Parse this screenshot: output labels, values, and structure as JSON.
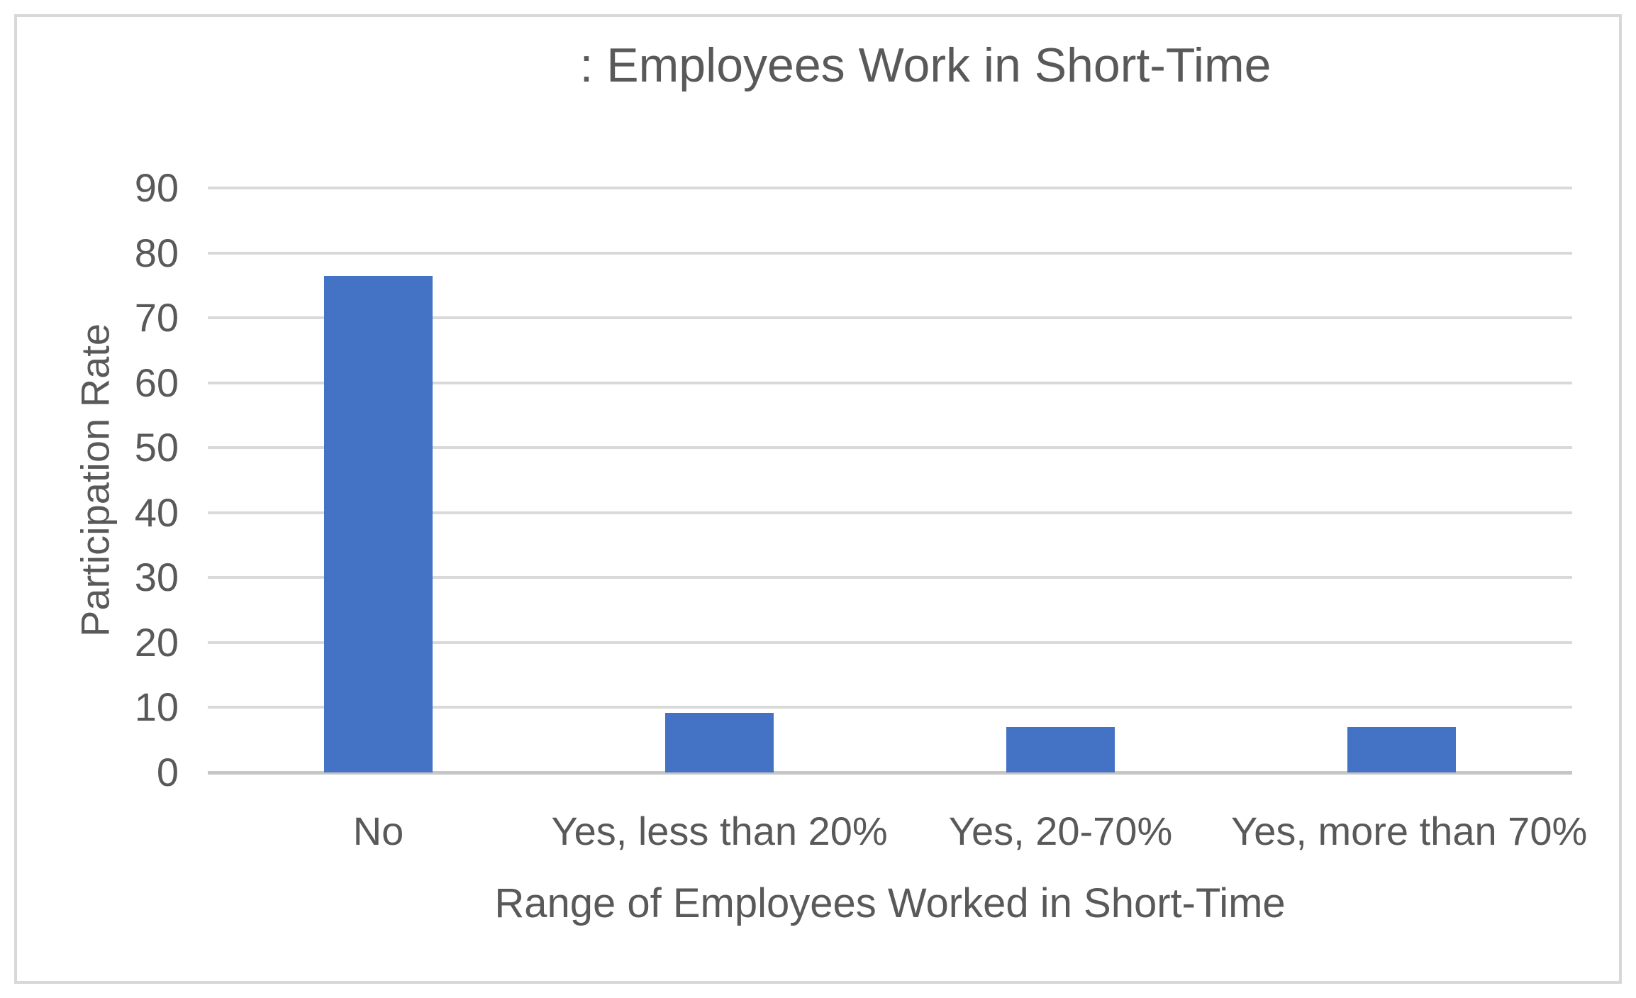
{
  "chart_data": {
    "type": "bar",
    "title": ": Employees Work in Short-Time",
    "categories": [
      "No",
      "Yes, less than 20%",
      "Yes, 20-70%",
      "Yes, more than 70%"
    ],
    "values": [
      76.5,
      9.2,
      7,
      7
    ],
    "xlabel": "Range of Employees Worked in Short-Time",
    "ylabel": "Participation Rate",
    "ylim": [
      0,
      90
    ],
    "ytick_step": 10,
    "ytick_labels": [
      "0",
      "10",
      "20",
      "30",
      "40",
      "50",
      "60",
      "70",
      "80",
      "90"
    ],
    "grid": true,
    "legend": false,
    "bar_color": "#4472c4",
    "gridline_color": "#d9d9d9",
    "axis_line_color": "#c6c6c6",
    "text_color": "#595959",
    "border_color": "#d8d8d8"
  }
}
